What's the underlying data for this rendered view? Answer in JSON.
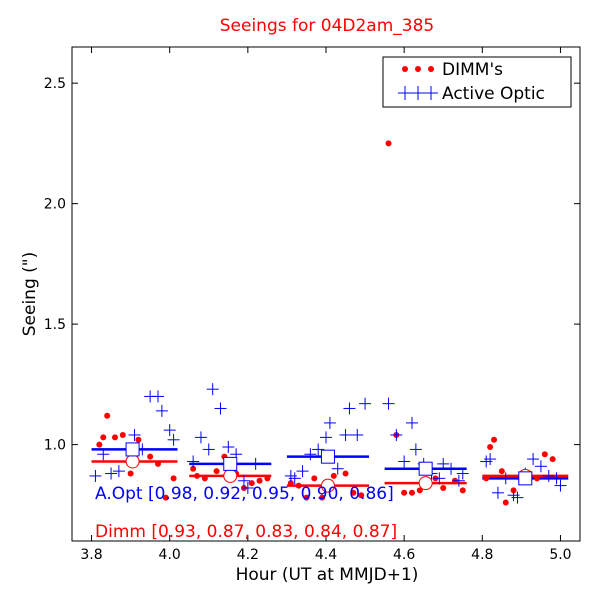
{
  "chart_data": {
    "type": "scatter",
    "title": "Seeings for 04D2am_385",
    "xlabel": "Hour (UT at MMJD+1)",
    "ylabel": "Seeing (\")",
    "xlim": [
      3.75,
      5.05
    ],
    "ylim": [
      0.6,
      2.65
    ],
    "xticks": [
      "3.8",
      "4.0",
      "4.2",
      "4.4",
      "4.6",
      "4.8",
      "5.0"
    ],
    "xtick_values": [
      3.8,
      4.0,
      4.2,
      4.4,
      4.6,
      4.8,
      5.0
    ],
    "yticks": [
      "1.0",
      "1.5",
      "2.0",
      "2.5"
    ],
    "ytick_values": [
      1.0,
      1.5,
      2.0,
      2.5
    ],
    "grid": false,
    "legend_position": "top-right",
    "colors": {
      "dimm": "#ff0000",
      "aopt": "#0000ff",
      "title": "#ff0000"
    },
    "series": [
      {
        "name": "DIMM's",
        "marker": "dot",
        "color": "#ff0000",
        "points": [
          [
            3.82,
            1.0
          ],
          [
            3.83,
            1.03
          ],
          [
            3.84,
            1.12
          ],
          [
            3.86,
            1.03
          ],
          [
            3.88,
            1.04
          ],
          [
            3.9,
            0.88
          ],
          [
            3.92,
            1.02
          ],
          [
            3.95,
            0.95
          ],
          [
            3.97,
            0.92
          ],
          [
            3.99,
            0.78
          ],
          [
            4.01,
            0.86
          ],
          [
            4.06,
            0.9
          ],
          [
            4.07,
            0.87
          ],
          [
            4.09,
            0.86
          ],
          [
            4.12,
            0.89
          ],
          [
            4.14,
            0.95
          ],
          [
            4.17,
            0.88
          ],
          [
            4.19,
            0.82
          ],
          [
            4.21,
            0.84
          ],
          [
            4.23,
            0.85
          ],
          [
            4.25,
            0.86
          ],
          [
            4.31,
            0.84
          ],
          [
            4.33,
            0.83
          ],
          [
            4.35,
            0.78
          ],
          [
            4.37,
            0.86
          ],
          [
            4.39,
            0.78
          ],
          [
            4.42,
            0.87
          ],
          [
            4.45,
            0.88
          ],
          [
            4.47,
            0.8
          ],
          [
            4.49,
            0.79
          ],
          [
            4.56,
            2.25
          ],
          [
            4.58,
            1.04
          ],
          [
            4.6,
            0.8
          ],
          [
            4.62,
            0.8
          ],
          [
            4.64,
            0.81
          ],
          [
            4.66,
            0.84
          ],
          [
            4.68,
            0.86
          ],
          [
            4.7,
            0.82
          ],
          [
            4.73,
            0.85
          ],
          [
            4.75,
            0.81
          ],
          [
            4.81,
            0.86
          ],
          [
            4.82,
            0.99
          ],
          [
            4.83,
            1.02
          ],
          [
            4.85,
            0.89
          ],
          [
            4.86,
            0.76
          ],
          [
            4.88,
            0.81
          ],
          [
            4.9,
            0.86
          ],
          [
            4.92,
            0.88
          ],
          [
            4.94,
            0.86
          ],
          [
            4.96,
            0.96
          ],
          [
            4.98,
            0.94
          ]
        ]
      },
      {
        "name": "Active Optic",
        "marker": "plus",
        "color": "#0000ff",
        "points": [
          [
            3.81,
            0.87
          ],
          [
            3.83,
            0.96
          ],
          [
            3.85,
            0.88
          ],
          [
            3.87,
            0.89
          ],
          [
            3.89,
            0.98
          ],
          [
            3.91,
            1.04
          ],
          [
            3.93,
            0.98
          ],
          [
            3.95,
            1.2
          ],
          [
            3.97,
            1.2
          ],
          [
            3.98,
            1.14
          ],
          [
            4.0,
            1.06
          ],
          [
            4.01,
            1.02
          ],
          [
            4.06,
            0.93
          ],
          [
            4.08,
            1.03
          ],
          [
            4.1,
            0.98
          ],
          [
            4.11,
            1.23
          ],
          [
            4.13,
            1.15
          ],
          [
            4.15,
            0.99
          ],
          [
            4.17,
            0.96
          ],
          [
            4.19,
            0.85
          ],
          [
            4.2,
            0.82
          ],
          [
            4.22,
            0.92
          ],
          [
            4.31,
            0.87
          ],
          [
            4.32,
            0.86
          ],
          [
            4.34,
            0.89
          ],
          [
            4.36,
            0.96
          ],
          [
            4.38,
            0.98
          ],
          [
            4.4,
            1.03
          ],
          [
            4.41,
            1.09
          ],
          [
            4.43,
            0.9
          ],
          [
            4.45,
            1.04
          ],
          [
            4.46,
            1.15
          ],
          [
            4.48,
            1.04
          ],
          [
            4.5,
            1.17
          ],
          [
            4.56,
            1.17
          ],
          [
            4.58,
            1.04
          ],
          [
            4.6,
            0.93
          ],
          [
            4.62,
            1.09
          ],
          [
            4.63,
            0.98
          ],
          [
            4.65,
            0.92
          ],
          [
            4.67,
            0.88
          ],
          [
            4.69,
            0.86
          ],
          [
            4.7,
            0.92
          ],
          [
            4.72,
            0.9
          ],
          [
            4.74,
            0.85
          ],
          [
            4.75,
            0.88
          ],
          [
            4.81,
            0.93
          ],
          [
            4.82,
            0.94
          ],
          [
            4.84,
            0.8
          ],
          [
            4.86,
            0.86
          ],
          [
            4.88,
            0.79
          ],
          [
            4.89,
            0.78
          ],
          [
            4.91,
            0.88
          ],
          [
            4.93,
            0.94
          ],
          [
            4.95,
            0.91
          ],
          [
            4.97,
            0.87
          ],
          [
            4.99,
            0.86
          ],
          [
            5.0,
            0.83
          ]
        ]
      }
    ],
    "averages": {
      "aopt": {
        "label": "A.Opt [0.98, 0.92, 0.95, 0.90, 0.86]",
        "segments": [
          [
            3.8,
            4.02,
            0.98
          ],
          [
            4.05,
            4.26,
            0.92
          ],
          [
            4.3,
            4.51,
            0.95
          ],
          [
            4.55,
            4.76,
            0.9
          ],
          [
            4.8,
            5.02,
            0.86
          ]
        ],
        "centers": [
          [
            3.905,
            0.98
          ],
          [
            4.155,
            0.92
          ],
          [
            4.405,
            0.95
          ],
          [
            4.655,
            0.9
          ],
          [
            4.91,
            0.86
          ]
        ]
      },
      "dimm": {
        "label": "Dimm [0.93, 0.87, 0.83, 0.84, 0.87]",
        "segments": [
          [
            3.8,
            4.02,
            0.93
          ],
          [
            4.05,
            4.26,
            0.87
          ],
          [
            4.3,
            4.51,
            0.83
          ],
          [
            4.55,
            4.76,
            0.84
          ],
          [
            4.8,
            5.02,
            0.87
          ]
        ],
        "centers": [
          [
            3.905,
            0.93
          ],
          [
            4.155,
            0.87
          ],
          [
            4.405,
            0.83
          ],
          [
            4.655,
            0.84
          ],
          [
            4.91,
            0.87
          ]
        ]
      }
    }
  }
}
